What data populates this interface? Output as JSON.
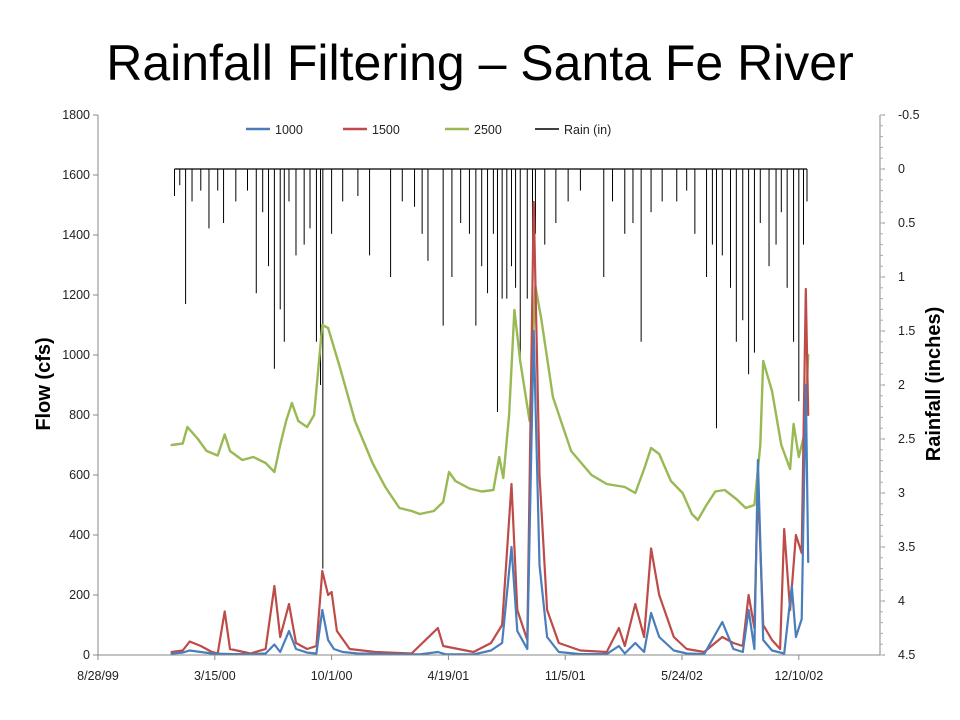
{
  "slide": {
    "title": "Rainfall Filtering – Santa Fe River"
  },
  "chart_data": {
    "type": "line",
    "title": "",
    "ylabel": "Flow (cfs)",
    "y2label": "Rainfall (inches)",
    "y2_inverted": true,
    "grid": false,
    "legend_position": "top",
    "ylim": [
      0,
      1800
    ],
    "y2lim": [
      -0.5,
      4.5
    ],
    "yticks": [
      0,
      200,
      400,
      600,
      800,
      1000,
      1200,
      1400,
      1600,
      1800
    ],
    "y2ticks": [
      -0.5,
      0,
      0.5,
      1,
      1.5,
      2,
      2.5,
      3,
      3.5,
      4,
      4.5
    ],
    "xlim": [
      "1999-08-28",
      "2003-04-28"
    ],
    "xticks": [
      "1999-08-28",
      "2000-03-15",
      "2000-10-01",
      "2001-04-19",
      "2001-11-05",
      "2002-05-24",
      "2002-12-10"
    ],
    "xtick_labels": [
      "8/28/99",
      "3/15/00",
      "10/1/00",
      "4/19/01",
      "11/5/01",
      "5/24/02",
      "12/10/02"
    ],
    "series": [
      {
        "name": "1000",
        "color": "#4a7ebb",
        "axis": "left",
        "width": 2.2,
        "points": [
          [
            "2000-01-01",
            5
          ],
          [
            "2000-01-20",
            8
          ],
          [
            "2000-02-01",
            15
          ],
          [
            "2000-02-20",
            10
          ],
          [
            "2000-03-10",
            5
          ],
          [
            "2000-04-15",
            3
          ],
          [
            "2000-05-15",
            3
          ],
          [
            "2000-06-10",
            5
          ],
          [
            "2000-06-25",
            35
          ],
          [
            "2000-07-05",
            10
          ],
          [
            "2000-07-20",
            80
          ],
          [
            "2000-08-01",
            20
          ],
          [
            "2000-08-20",
            8
          ],
          [
            "2000-09-05",
            5
          ],
          [
            "2000-09-15",
            150
          ],
          [
            "2000-09-25",
            50
          ],
          [
            "2000-10-05",
            20
          ],
          [
            "2000-10-20",
            10
          ],
          [
            "2000-11-15",
            5
          ],
          [
            "2001-01-01",
            3
          ],
          [
            "2001-03-01",
            2
          ],
          [
            "2001-04-01",
            10
          ],
          [
            "2001-04-15",
            2
          ],
          [
            "2001-06-01",
            2
          ],
          [
            "2001-07-01",
            15
          ],
          [
            "2001-07-20",
            40
          ],
          [
            "2001-08-05",
            360
          ],
          [
            "2001-08-15",
            80
          ],
          [
            "2001-09-01",
            20
          ],
          [
            "2001-09-12",
            1080
          ],
          [
            "2001-09-22",
            300
          ],
          [
            "2001-10-05",
            60
          ],
          [
            "2001-10-25",
            10
          ],
          [
            "2001-12-01",
            3
          ],
          [
            "2002-01-15",
            3
          ],
          [
            "2002-02-05",
            30
          ],
          [
            "2002-02-15",
            5
          ],
          [
            "2002-03-05",
            40
          ],
          [
            "2002-03-20",
            10
          ],
          [
            "2002-04-01",
            140
          ],
          [
            "2002-04-15",
            60
          ],
          [
            "2002-05-10",
            15
          ],
          [
            "2002-06-01",
            5
          ],
          [
            "2002-07-01",
            3
          ],
          [
            "2002-08-01",
            110
          ],
          [
            "2002-08-20",
            20
          ],
          [
            "2002-09-05",
            10
          ],
          [
            "2002-09-15",
            150
          ],
          [
            "2002-09-25",
            20
          ],
          [
            "2002-10-01",
            650
          ],
          [
            "2002-10-10",
            50
          ],
          [
            "2002-10-25",
            15
          ],
          [
            "2002-11-15",
            5
          ],
          [
            "2002-11-28",
            230
          ],
          [
            "2002-12-05",
            60
          ],
          [
            "2002-12-15",
            120
          ],
          [
            "2002-12-22",
            900
          ],
          [
            "2002-12-26",
            310
          ]
        ]
      },
      {
        "name": "1500",
        "color": "#be4b48",
        "axis": "left",
        "width": 2.2,
        "points": [
          [
            "2000-01-01",
            10
          ],
          [
            "2000-01-20",
            15
          ],
          [
            "2000-02-01",
            45
          ],
          [
            "2000-02-20",
            30
          ],
          [
            "2000-03-10",
            10
          ],
          [
            "2000-03-20",
            5
          ],
          [
            "2000-04-01",
            145
          ],
          [
            "2000-04-10",
            20
          ],
          [
            "2000-05-15",
            5
          ],
          [
            "2000-06-10",
            20
          ],
          [
            "2000-06-25",
            230
          ],
          [
            "2000-07-05",
            60
          ],
          [
            "2000-07-20",
            170
          ],
          [
            "2000-08-01",
            40
          ],
          [
            "2000-08-20",
            20
          ],
          [
            "2000-09-05",
            30
          ],
          [
            "2000-09-15",
            280
          ],
          [
            "2000-09-25",
            200
          ],
          [
            "2000-10-01",
            210
          ],
          [
            "2000-10-10",
            80
          ],
          [
            "2000-11-01",
            20
          ],
          [
            "2000-12-15",
            10
          ],
          [
            "2001-02-15",
            5
          ],
          [
            "2001-04-01",
            90
          ],
          [
            "2001-04-10",
            30
          ],
          [
            "2001-06-01",
            10
          ],
          [
            "2001-07-01",
            40
          ],
          [
            "2001-07-20",
            100
          ],
          [
            "2001-08-05",
            570
          ],
          [
            "2001-08-15",
            150
          ],
          [
            "2001-09-01",
            50
          ],
          [
            "2001-09-12",
            1510
          ],
          [
            "2001-09-22",
            600
          ],
          [
            "2001-10-05",
            150
          ],
          [
            "2001-10-25",
            40
          ],
          [
            "2001-12-01",
            15
          ],
          [
            "2002-01-15",
            10
          ],
          [
            "2002-02-05",
            90
          ],
          [
            "2002-02-15",
            30
          ],
          [
            "2002-03-05",
            170
          ],
          [
            "2002-03-20",
            60
          ],
          [
            "2002-04-01",
            355
          ],
          [
            "2002-04-15",
            200
          ],
          [
            "2002-05-10",
            60
          ],
          [
            "2002-06-01",
            20
          ],
          [
            "2002-07-01",
            10
          ],
          [
            "2002-08-01",
            60
          ],
          [
            "2002-08-20",
            40
          ],
          [
            "2002-09-05",
            30
          ],
          [
            "2002-09-15",
            200
          ],
          [
            "2002-09-25",
            90
          ],
          [
            "2002-10-01",
            570
          ],
          [
            "2002-10-10",
            100
          ],
          [
            "2002-10-25",
            50
          ],
          [
            "2002-11-08",
            20
          ],
          [
            "2002-11-15",
            420
          ],
          [
            "2002-11-25",
            150
          ],
          [
            "2002-12-05",
            400
          ],
          [
            "2002-12-15",
            340
          ],
          [
            "2002-12-22",
            1220
          ],
          [
            "2002-12-26",
            800
          ]
        ]
      },
      {
        "name": "2500",
        "color": "#98b954",
        "axis": "left",
        "width": 2.4,
        "points": [
          [
            "2000-01-01",
            700
          ],
          [
            "2000-01-20",
            705
          ],
          [
            "2000-01-28",
            760
          ],
          [
            "2000-02-15",
            720
          ],
          [
            "2000-03-01",
            680
          ],
          [
            "2000-03-20",
            665
          ],
          [
            "2000-04-01",
            735
          ],
          [
            "2000-04-10",
            680
          ],
          [
            "2000-05-01",
            650
          ],
          [
            "2000-05-20",
            660
          ],
          [
            "2000-06-10",
            640
          ],
          [
            "2000-06-25",
            610
          ],
          [
            "2000-07-05",
            700
          ],
          [
            "2000-07-15",
            780
          ],
          [
            "2000-07-25",
            840
          ],
          [
            "2000-08-05",
            780
          ],
          [
            "2000-08-20",
            760
          ],
          [
            "2000-09-01",
            800
          ],
          [
            "2000-09-15",
            1100
          ],
          [
            "2000-09-25",
            1090
          ],
          [
            "2000-10-15",
            960
          ],
          [
            "2000-11-10",
            780
          ],
          [
            "2000-12-10",
            640
          ],
          [
            "2001-01-01",
            560
          ],
          [
            "2001-01-25",
            490
          ],
          [
            "2001-02-15",
            480
          ],
          [
            "2001-03-01",
            470
          ],
          [
            "2001-03-25",
            480
          ],
          [
            "2001-04-10",
            510
          ],
          [
            "2001-04-20",
            610
          ],
          [
            "2001-05-01",
            580
          ],
          [
            "2001-05-25",
            555
          ],
          [
            "2001-06-15",
            545
          ],
          [
            "2001-07-05",
            550
          ],
          [
            "2001-07-15",
            660
          ],
          [
            "2001-07-22",
            590
          ],
          [
            "2001-08-01",
            800
          ],
          [
            "2001-08-10",
            1150
          ],
          [
            "2001-08-20",
            980
          ],
          [
            "2001-09-05",
            780
          ],
          [
            "2001-09-15",
            1230
          ],
          [
            "2001-09-25",
            1120
          ],
          [
            "2001-10-15",
            860
          ],
          [
            "2001-11-15",
            680
          ],
          [
            "2001-12-20",
            600
          ],
          [
            "2002-01-15",
            570
          ],
          [
            "2002-02-15",
            560
          ],
          [
            "2002-03-05",
            540
          ],
          [
            "2002-03-20",
            620
          ],
          [
            "2002-04-01",
            690
          ],
          [
            "2002-04-15",
            670
          ],
          [
            "2002-05-05",
            580
          ],
          [
            "2002-05-25",
            540
          ],
          [
            "2002-06-10",
            470
          ],
          [
            "2002-06-20",
            450
          ],
          [
            "2002-07-05",
            500
          ],
          [
            "2002-07-20",
            545
          ],
          [
            "2002-08-05",
            550
          ],
          [
            "2002-08-25",
            520
          ],
          [
            "2002-09-10",
            490
          ],
          [
            "2002-09-25",
            500
          ],
          [
            "2002-10-05",
            700
          ],
          [
            "2002-10-10",
            980
          ],
          [
            "2002-10-25",
            880
          ],
          [
            "2002-11-10",
            700
          ],
          [
            "2002-11-25",
            620
          ],
          [
            "2002-12-01",
            770
          ],
          [
            "2002-12-10",
            660
          ],
          [
            "2002-12-20",
            740
          ],
          [
            "2002-12-26",
            1000
          ]
        ]
      },
      {
        "name": "Rain (in)",
        "color": "#000000",
        "axis": "right",
        "width": 1.0,
        "kind": "spikes",
        "baseline": 0,
        "points": [
          [
            "2000-01-06",
            0.25
          ],
          [
            "2000-01-15",
            0.15
          ],
          [
            "2000-01-25",
            1.25
          ],
          [
            "2000-02-05",
            0.3
          ],
          [
            "2000-02-20",
            0.2
          ],
          [
            "2000-03-05",
            0.55
          ],
          [
            "2000-03-20",
            0.2
          ],
          [
            "2000-03-30",
            0.5
          ],
          [
            "2000-04-20",
            0.3
          ],
          [
            "2000-05-10",
            0.2
          ],
          [
            "2000-05-25",
            1.15
          ],
          [
            "2000-06-05",
            0.4
          ],
          [
            "2000-06-15",
            0.9
          ],
          [
            "2000-06-25",
            1.85
          ],
          [
            "2000-07-05",
            1.3
          ],
          [
            "2000-07-12",
            1.6
          ],
          [
            "2000-07-20",
            0.3
          ],
          [
            "2000-08-01",
            0.8
          ],
          [
            "2000-08-15",
            0.7
          ],
          [
            "2000-08-25",
            0.55
          ],
          [
            "2000-09-05",
            1.6
          ],
          [
            "2000-09-12",
            2.0
          ],
          [
            "2000-09-16",
            3.7
          ],
          [
            "2000-10-01",
            0.6
          ],
          [
            "2000-10-20",
            0.3
          ],
          [
            "2000-11-15",
            0.25
          ],
          [
            "2000-12-05",
            0.8
          ],
          [
            "2001-01-10",
            1.0
          ],
          [
            "2001-01-30",
            0.3
          ],
          [
            "2001-02-20",
            0.35
          ],
          [
            "2001-03-05",
            0.6
          ],
          [
            "2001-03-15",
            0.85
          ],
          [
            "2001-04-10",
            1.45
          ],
          [
            "2001-04-25",
            1.0
          ],
          [
            "2001-05-10",
            0.5
          ],
          [
            "2001-05-25",
            0.6
          ],
          [
            "2001-06-05",
            1.45
          ],
          [
            "2001-06-15",
            0.9
          ],
          [
            "2001-06-25",
            1.15
          ],
          [
            "2001-07-05",
            0.6
          ],
          [
            "2001-07-12",
            2.25
          ],
          [
            "2001-07-20",
            1.2
          ],
          [
            "2001-07-28",
            1.2
          ],
          [
            "2001-08-05",
            0.9
          ],
          [
            "2001-08-12",
            1.1
          ],
          [
            "2001-08-20",
            1.8
          ],
          [
            "2001-09-01",
            1.2
          ],
          [
            "2001-09-10",
            2.1
          ],
          [
            "2001-09-15",
            0.6
          ],
          [
            "2001-10-01",
            0.7
          ],
          [
            "2001-10-20",
            0.5
          ],
          [
            "2001-11-10",
            0.3
          ],
          [
            "2001-12-01",
            0.2
          ],
          [
            "2002-01-10",
            1.0
          ],
          [
            "2002-01-25",
            0.3
          ],
          [
            "2002-02-15",
            0.6
          ],
          [
            "2002-03-01",
            0.5
          ],
          [
            "2002-03-15",
            1.6
          ],
          [
            "2002-04-01",
            0.4
          ],
          [
            "2002-04-20",
            0.3
          ],
          [
            "2002-05-15",
            0.3
          ],
          [
            "2002-06-01",
            0.2
          ],
          [
            "2002-06-15",
            0.6
          ],
          [
            "2002-07-05",
            1.0
          ],
          [
            "2002-07-15",
            0.7
          ],
          [
            "2002-07-22",
            2.4
          ],
          [
            "2002-08-01",
            0.8
          ],
          [
            "2002-08-15",
            1.1
          ],
          [
            "2002-08-25",
            1.6
          ],
          [
            "2002-09-05",
            1.4
          ],
          [
            "2002-09-15",
            1.9
          ],
          [
            "2002-09-25",
            1.7
          ],
          [
            "2002-10-05",
            0.5
          ],
          [
            "2002-10-20",
            0.9
          ],
          [
            "2002-11-01",
            0.7
          ],
          [
            "2002-11-10",
            0.4
          ],
          [
            "2002-11-20",
            1.1
          ],
          [
            "2002-12-01",
            1.6
          ],
          [
            "2002-12-10",
            2.15
          ],
          [
            "2002-12-18",
            0.7
          ],
          [
            "2002-12-24",
            0.3
          ]
        ]
      }
    ]
  }
}
